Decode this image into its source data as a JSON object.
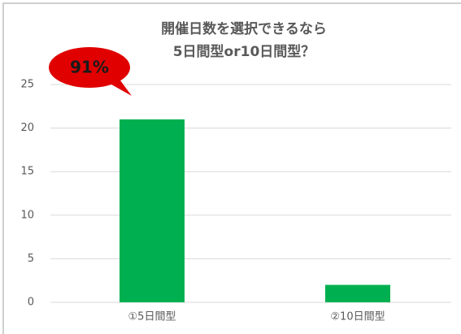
{
  "chart_data": {
    "type": "bar",
    "title": [
      "開催日数を選択できるなら",
      "5日間型or10日間型？"
    ],
    "categories": [
      "①5日間型",
      "②10日間型"
    ],
    "values": [
      21,
      2
    ],
    "color": "#00b050",
    "ylim": [
      0,
      25
    ],
    "yticks": [
      0,
      5,
      10,
      15,
      20,
      25
    ],
    "grid": true,
    "annotation": "91%"
  }
}
